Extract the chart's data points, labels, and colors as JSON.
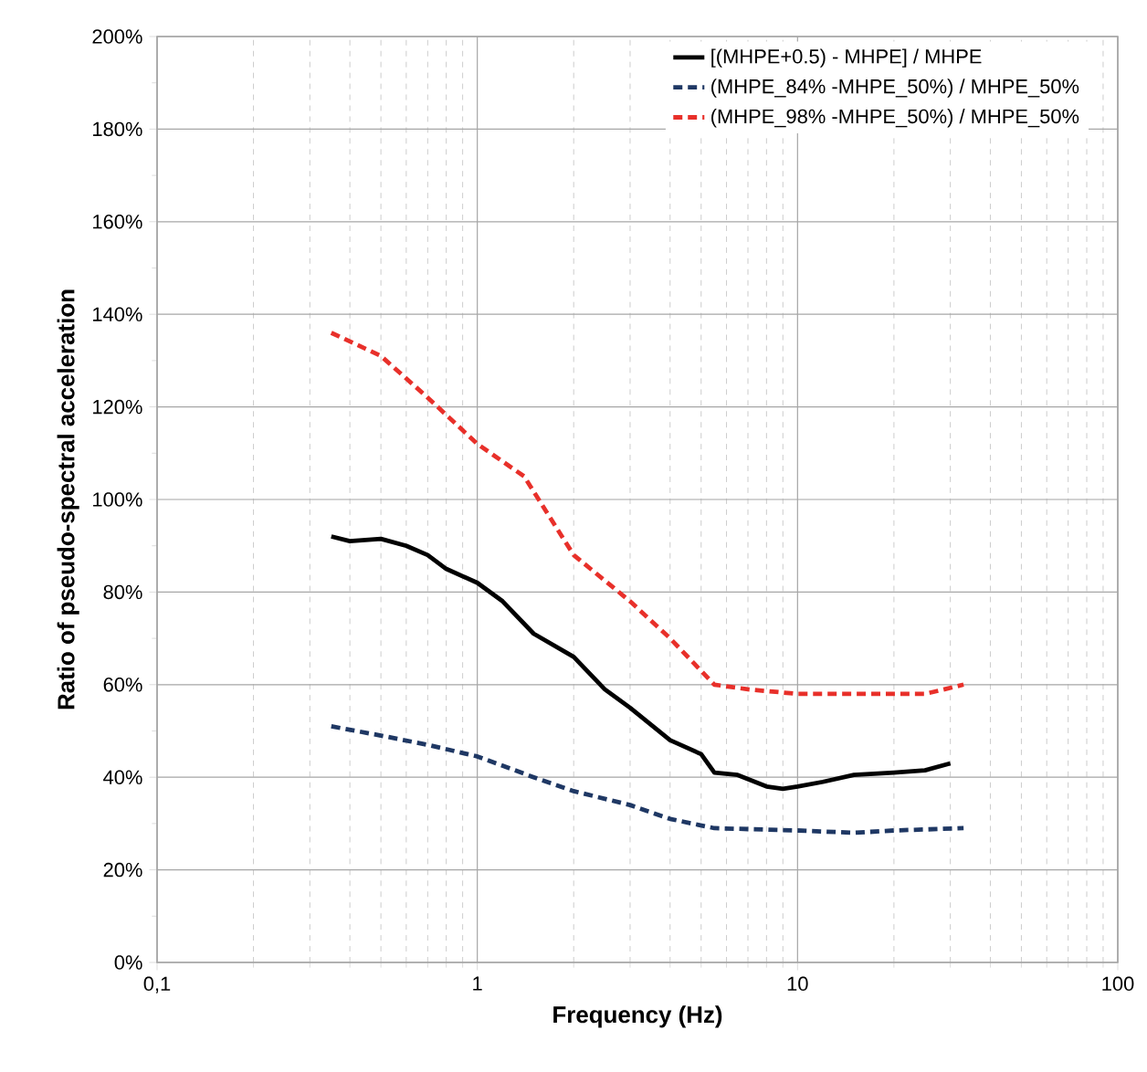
{
  "chart_data": {
    "type": "line",
    "xlabel": "Frequency (Hz)",
    "ylabel": "Ratio of pseudo-spectral acceleration",
    "log": "x",
    "grid": true,
    "legend": "top right",
    "marker": "none",
    "xlim": [
      0.1,
      100
    ],
    "ylim": [
      0,
      200
    ],
    "xticks": [
      {
        "value": 0.1,
        "label": "0,1"
      },
      1,
      10,
      100
    ],
    "yticks": [
      {
        "value": 0,
        "label": "0%"
      },
      {
        "value": 20,
        "label": "20%"
      },
      {
        "value": 40,
        "label": "40%"
      },
      {
        "value": 60,
        "label": "60%"
      },
      {
        "value": 80,
        "label": "80%"
      },
      {
        "value": 100,
        "label": "100%"
      },
      {
        "value": 120,
        "label": "120%"
      },
      {
        "value": 140,
        "label": "140%"
      },
      {
        "value": 160,
        "label": "160%"
      },
      {
        "value": 180,
        "label": "180%"
      },
      {
        "value": 200,
        "label": "200%"
      }
    ],
    "series": [
      {
        "name": "[(MHPE+0.5) - MHPE] / MHPE",
        "color": "#000000",
        "line_style": "solid",
        "x": [
          0.35,
          0.4,
          0.5,
          0.6,
          0.7,
          0.8,
          1.0,
          1.2,
          1.5,
          2.0,
          2.5,
          3,
          4,
          5,
          5.5,
          6.5,
          8,
          9,
          10,
          12,
          15,
          20,
          25,
          30
        ],
        "values": [
          92,
          91,
          91.5,
          90,
          88,
          85,
          82,
          78,
          71,
          66,
          59,
          55,
          48,
          45,
          41,
          40.5,
          38,
          37.5,
          38,
          39,
          40.5,
          41,
          41.5,
          43
        ]
      },
      {
        "name": "(MHPE_84% -MHPE_50%) / MHPE_50%",
        "color": "#1f3864",
        "line_style": "dashed",
        "x": [
          0.35,
          0.5,
          0.7,
          1,
          1.5,
          2,
          3,
          4,
          5.5,
          10,
          15,
          20,
          33
        ],
        "values": [
          51,
          49,
          47,
          44.5,
          40,
          37,
          34,
          31,
          29,
          28.5,
          28,
          28.5,
          29
        ]
      },
      {
        "name": "(MHPE_98% -MHPE_50%) / MHPE_50%",
        "color": "#e8302a",
        "line_style": "dashed",
        "x": [
          0.35,
          0.5,
          0.7,
          1.0,
          1.4,
          2,
          3,
          4,
          5.5,
          7,
          10,
          15,
          20,
          25,
          33
        ],
        "values": [
          136,
          131,
          122,
          112,
          105,
          88,
          78,
          70,
          60,
          59,
          58,
          58,
          58,
          58,
          60
        ]
      }
    ]
  }
}
